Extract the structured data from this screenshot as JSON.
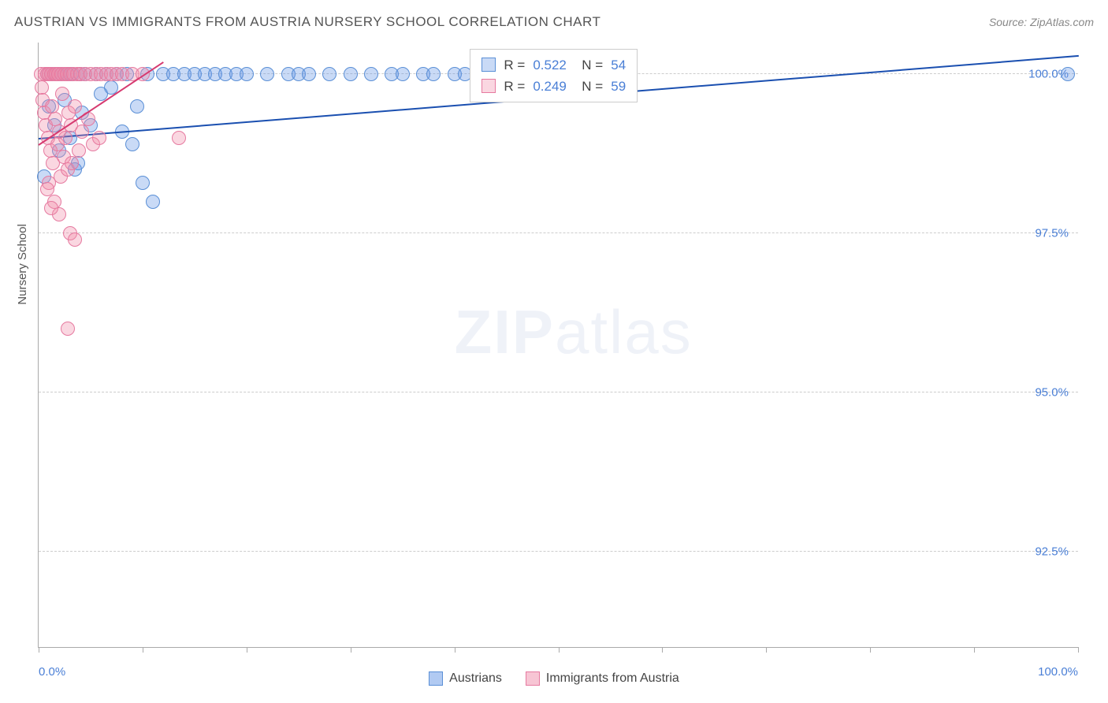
{
  "title": "AUSTRIAN VS IMMIGRANTS FROM AUSTRIA NURSERY SCHOOL CORRELATION CHART",
  "source": "Source: ZipAtlas.com",
  "ylabel": "Nursery School",
  "watermark_bold": "ZIP",
  "watermark_rest": "atlas",
  "xlim": [
    0,
    100
  ],
  "ylim": [
    91.0,
    100.5
  ],
  "xticks_minor": [
    0,
    10,
    20,
    30,
    40,
    50,
    60,
    70,
    80,
    90,
    100
  ],
  "xtick_labels": [
    {
      "x": 0,
      "text": "0.0%"
    },
    {
      "x": 100,
      "text": "100.0%"
    }
  ],
  "yticks": [
    {
      "y": 92.5,
      "text": "92.5%"
    },
    {
      "y": 95.0,
      "text": "95.0%"
    },
    {
      "y": 97.5,
      "text": "97.5%"
    },
    {
      "y": 100.0,
      "text": "100.0%"
    }
  ],
  "series": [
    {
      "name": "Austrians",
      "fill": "rgba(100,150,230,0.35)",
      "stroke": "#5a8fd6",
      "marker_r": 9,
      "trend_color": "#1a4fb0",
      "trend": {
        "x1": 0,
        "y1": 99.0,
        "x2": 100,
        "y2": 100.3
      },
      "R": "0.522",
      "N": "54",
      "points": [
        [
          0.5,
          98.4
        ],
        [
          0.8,
          100
        ],
        [
          1.0,
          99.5
        ],
        [
          1.2,
          100
        ],
        [
          1.5,
          99.2
        ],
        [
          1.8,
          100
        ],
        [
          2.0,
          98.8
        ],
        [
          2.2,
          100
        ],
        [
          2.5,
          99.6
        ],
        [
          2.8,
          100
        ],
        [
          3.0,
          99.0
        ],
        [
          3.2,
          100
        ],
        [
          3.5,
          98.5
        ],
        [
          4.0,
          100
        ],
        [
          4.2,
          99.4
        ],
        [
          4.5,
          100
        ],
        [
          5.0,
          99.2
        ],
        [
          5.5,
          100
        ],
        [
          6.0,
          99.7
        ],
        [
          6.5,
          100
        ],
        [
          7.0,
          99.8
        ],
        [
          7.5,
          100
        ],
        [
          8.0,
          99.1
        ],
        [
          8.5,
          100
        ],
        [
          9.0,
          98.9
        ],
        [
          9.5,
          99.5
        ],
        [
          10,
          98.3
        ],
        [
          10.5,
          100
        ],
        [
          11,
          98.0
        ],
        [
          12,
          100
        ],
        [
          13,
          100
        ],
        [
          14,
          100
        ],
        [
          15,
          100
        ],
        [
          16,
          100
        ],
        [
          17,
          100
        ],
        [
          18,
          100
        ],
        [
          19,
          100
        ],
        [
          20,
          100
        ],
        [
          22,
          100
        ],
        [
          24,
          100
        ],
        [
          25,
          100
        ],
        [
          26,
          100
        ],
        [
          28,
          100
        ],
        [
          30,
          100
        ],
        [
          32,
          100
        ],
        [
          34,
          100
        ],
        [
          35,
          100
        ],
        [
          37,
          100
        ],
        [
          38,
          100
        ],
        [
          40,
          100
        ],
        [
          41,
          100
        ],
        [
          43,
          100
        ],
        [
          99,
          100
        ],
        [
          3.8,
          98.6
        ]
      ]
    },
    {
      "name": "Immigrants from Austria",
      "fill": "rgba(240,140,170,0.35)",
      "stroke": "#e67aa0",
      "marker_r": 9,
      "trend_color": "#d63a70",
      "trend": {
        "x1": 0,
        "y1": 98.9,
        "x2": 12,
        "y2": 100.2
      },
      "R": "0.249",
      "N": "59",
      "points": [
        [
          0.2,
          100
        ],
        [
          0.3,
          99.8
        ],
        [
          0.4,
          99.6
        ],
        [
          0.5,
          99.4
        ],
        [
          0.6,
          100
        ],
        [
          0.7,
          99.2
        ],
        [
          0.8,
          100
        ],
        [
          0.9,
          99.0
        ],
        [
          1.0,
          100
        ],
        [
          1.1,
          98.8
        ],
        [
          1.2,
          100
        ],
        [
          1.3,
          99.5
        ],
        [
          1.4,
          98.6
        ],
        [
          1.5,
          100
        ],
        [
          1.6,
          99.3
        ],
        [
          1.7,
          100
        ],
        [
          1.8,
          98.9
        ],
        [
          1.9,
          100
        ],
        [
          2.0,
          99.1
        ],
        [
          2.1,
          98.4
        ],
        [
          2.2,
          100
        ],
        [
          2.3,
          99.7
        ],
        [
          2.4,
          98.7
        ],
        [
          2.5,
          100
        ],
        [
          2.6,
          99.0
        ],
        [
          2.7,
          100
        ],
        [
          2.8,
          98.5
        ],
        [
          2.9,
          99.4
        ],
        [
          3.0,
          100
        ],
        [
          3.1,
          99.2
        ],
        [
          3.2,
          98.6
        ],
        [
          3.3,
          100
        ],
        [
          3.5,
          99.5
        ],
        [
          3.7,
          100
        ],
        [
          3.9,
          98.8
        ],
        [
          4.0,
          100
        ],
        [
          4.2,
          99.1
        ],
        [
          4.5,
          100
        ],
        [
          4.8,
          99.3
        ],
        [
          5.0,
          100
        ],
        [
          5.2,
          98.9
        ],
        [
          5.5,
          100
        ],
        [
          5.8,
          99.0
        ],
        [
          6.0,
          100
        ],
        [
          6.5,
          100
        ],
        [
          7.0,
          100
        ],
        [
          7.5,
          100
        ],
        [
          8.0,
          100
        ],
        [
          9.0,
          100
        ],
        [
          10,
          100
        ],
        [
          13.5,
          99.0
        ],
        [
          3.0,
          97.5
        ],
        [
          3.5,
          97.4
        ],
        [
          1.0,
          98.3
        ],
        [
          1.5,
          98.0
        ],
        [
          2.0,
          97.8
        ],
        [
          0.8,
          98.2
        ],
        [
          2.8,
          96.0
        ],
        [
          1.2,
          97.9
        ]
      ]
    }
  ],
  "stats_box": {
    "left_pct": 41.5,
    "top_pct": 1
  },
  "legend": {
    "items": [
      {
        "label": "Austrians",
        "fill": "rgba(100,150,230,0.5)",
        "stroke": "#5a8fd6"
      },
      {
        "label": "Immigrants from Austria",
        "fill": "rgba(240,140,170,0.5)",
        "stroke": "#e67aa0"
      }
    ]
  },
  "colors": {
    "title": "#555",
    "axis": "#aaa",
    "grid": "#ccc",
    "tick_text": "#4a7fd6"
  }
}
